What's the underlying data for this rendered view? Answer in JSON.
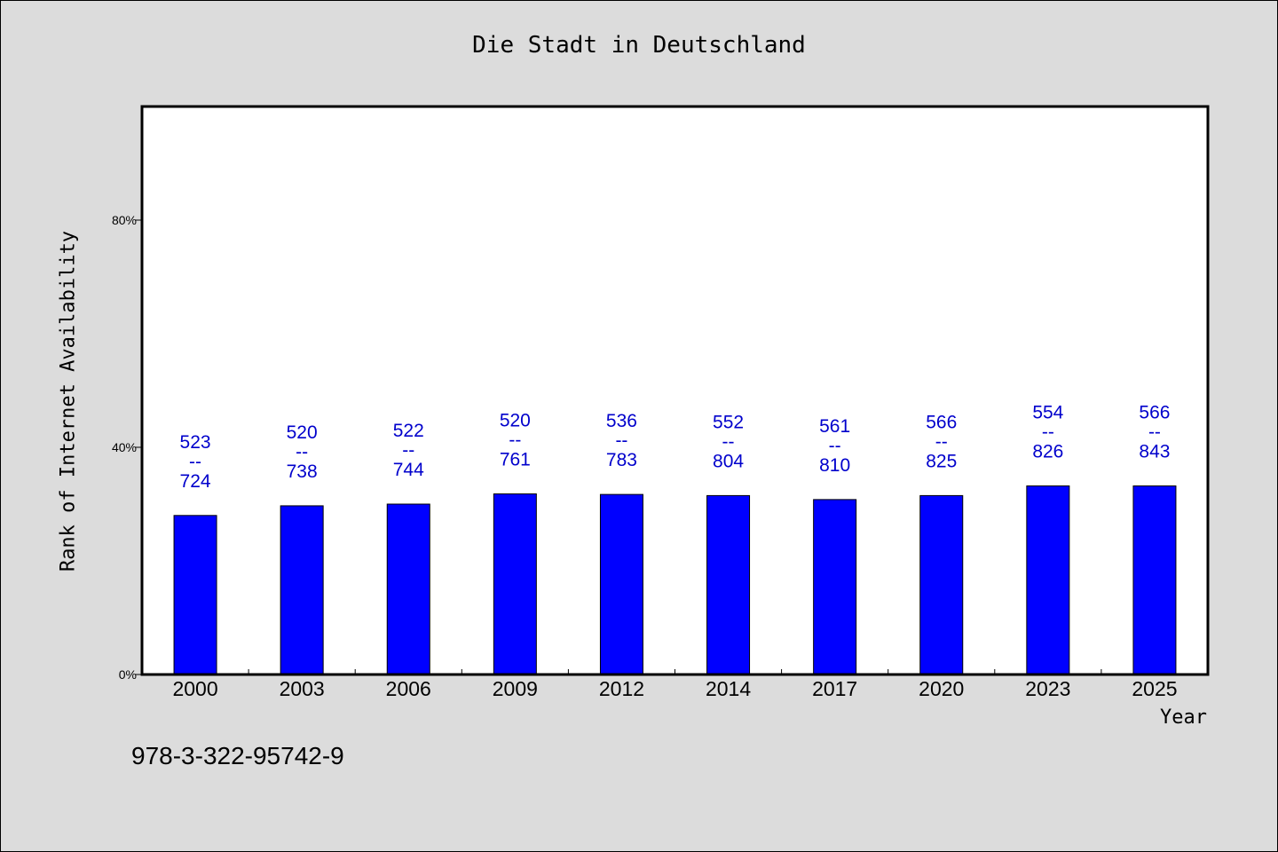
{
  "chart_data": {
    "type": "bar",
    "title": "Die Stadt in Deutschland",
    "xlabel": "Year",
    "ylabel": "Rank of Internet Availability",
    "categories": [
      "2000",
      "2003",
      "2006",
      "2009",
      "2012",
      "2014",
      "2017",
      "2020",
      "2023",
      "2025"
    ],
    "series": [
      {
        "values": [
          28,
          29.7,
          30,
          31.8,
          31.7,
          31.5,
          30.8,
          31.5,
          33.2,
          33.2
        ],
        "color": "#0000ff"
      }
    ],
    "data_labels": [
      {
        "top": "523",
        "sep": "--",
        "bottom": "724"
      },
      {
        "top": "520",
        "sep": "--",
        "bottom": "738"
      },
      {
        "top": "522",
        "sep": "--",
        "bottom": "744"
      },
      {
        "top": "520",
        "sep": "--",
        "bottom": "761"
      },
      {
        "top": "536",
        "sep": "--",
        "bottom": "783"
      },
      {
        "top": "552",
        "sep": "--",
        "bottom": "804"
      },
      {
        "top": "561",
        "sep": "--",
        "bottom": "810"
      },
      {
        "top": "566",
        "sep": "--",
        "bottom": "825"
      },
      {
        "top": "554",
        "sep": "--",
        "bottom": "826"
      },
      {
        "top": "566",
        "sep": "--",
        "bottom": "843"
      }
    ],
    "yticks": [
      0,
      40,
      80
    ],
    "ytick_labels": [
      "0%",
      "40%",
      "80%"
    ],
    "ylim": [
      0,
      100
    ],
    "grid": false,
    "label_color": "#0000cc"
  },
  "footer": {
    "isbn": "978-3-322-95742-9"
  }
}
